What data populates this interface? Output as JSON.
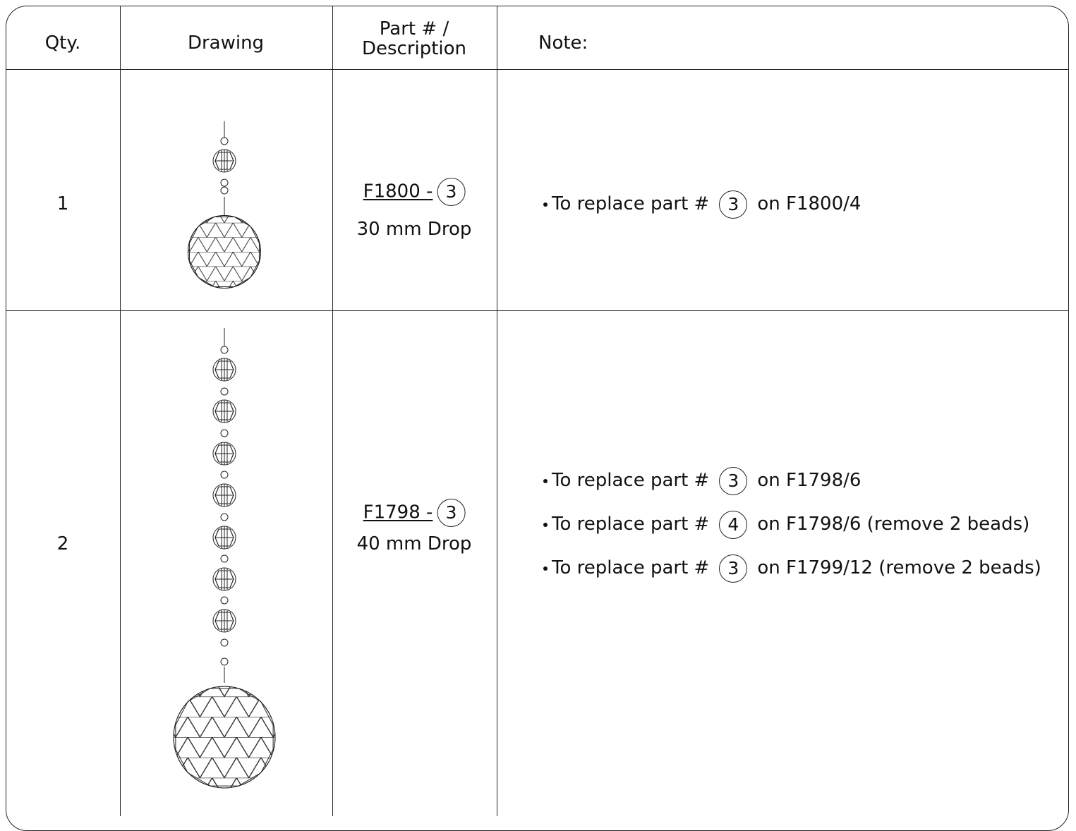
{
  "table": {
    "headers": {
      "qty": "Qty.",
      "drawing": "Drawing",
      "part": [
        "Part # /",
        "Description"
      ],
      "note": "Note:"
    },
    "rows": [
      {
        "qty": "1",
        "part_number": "F1800 -",
        "part_callout": "3",
        "description": "30 mm Drop",
        "notes": [
          {
            "text": "To replace part #",
            "callout": "3",
            "suffix": "on F1800/4"
          }
        ]
      },
      {
        "qty": "2",
        "part_number": "F1798 -",
        "part_callout": "3",
        "description": "40 mm Drop",
        "notes": [
          {
            "text": "To replace part #",
            "callout": "3",
            "suffix": "on F1798/6"
          },
          {
            "text": "To replace part #",
            "callout": "4",
            "suffix": "on F1798/6 (remove 2 beads)"
          },
          {
            "text": "To replace part #",
            "callout": "3",
            "suffix": "on F1799/12 (remove 2 beads)"
          }
        ]
      }
    ]
  }
}
